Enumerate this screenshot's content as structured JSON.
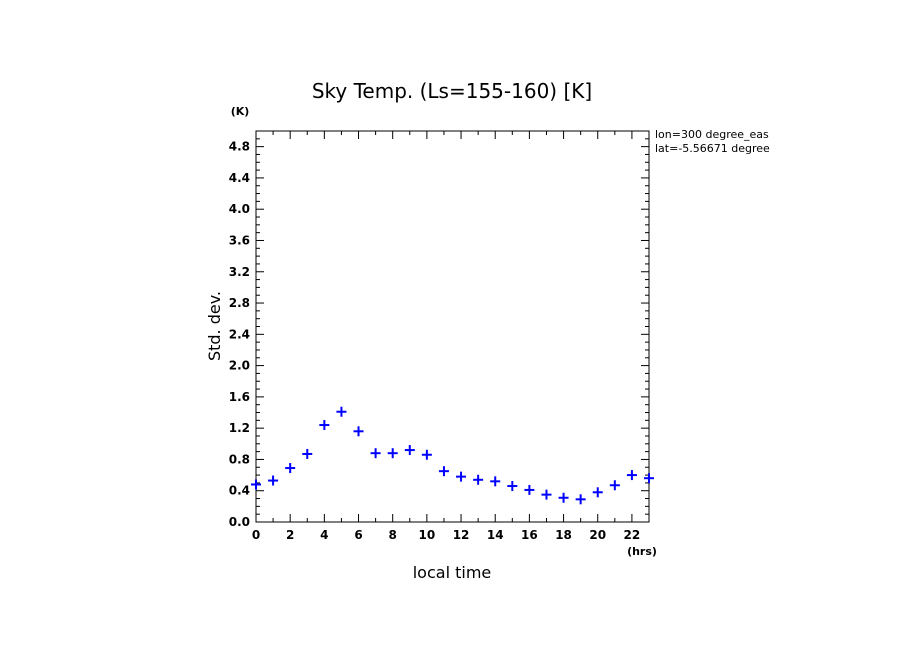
{
  "chart_data": {
    "type": "scatter",
    "title": "Sky Temp. (Ls=155-160) [K]",
    "xlabel": "local time",
    "ylabel": "Std. dev.",
    "x_unit": "(hrs)",
    "y_unit": "(K)",
    "xlim": [
      0,
      23
    ],
    "ylim": [
      0,
      5.0
    ],
    "x_ticks": [
      "0",
      "2",
      "4",
      "6",
      "8",
      "10",
      "12",
      "14",
      "16",
      "18",
      "20",
      "22"
    ],
    "y_ticks": [
      "0.0",
      "0.4",
      "0.8",
      "1.2",
      "1.6",
      "2.0",
      "2.4",
      "2.8",
      "3.2",
      "3.6",
      "4.0",
      "4.4",
      "4.8"
    ],
    "annotations": [
      "lon=300 degree_eas",
      "lat=-5.56671 degree"
    ],
    "marker": "plus",
    "color": "#0000ff",
    "x": [
      0,
      1,
      2,
      3,
      4,
      5,
      6,
      7,
      8,
      9,
      10,
      11,
      12,
      13,
      14,
      15,
      16,
      17,
      18,
      19,
      20,
      21,
      22,
      23
    ],
    "y": [
      0.48,
      0.53,
      0.69,
      0.87,
      1.24,
      1.41,
      1.16,
      0.88,
      0.88,
      0.92,
      0.86,
      0.65,
      0.58,
      0.54,
      0.52,
      0.46,
      0.41,
      0.35,
      0.31,
      0.29,
      0.38,
      0.47,
      0.6,
      0.56
    ]
  }
}
